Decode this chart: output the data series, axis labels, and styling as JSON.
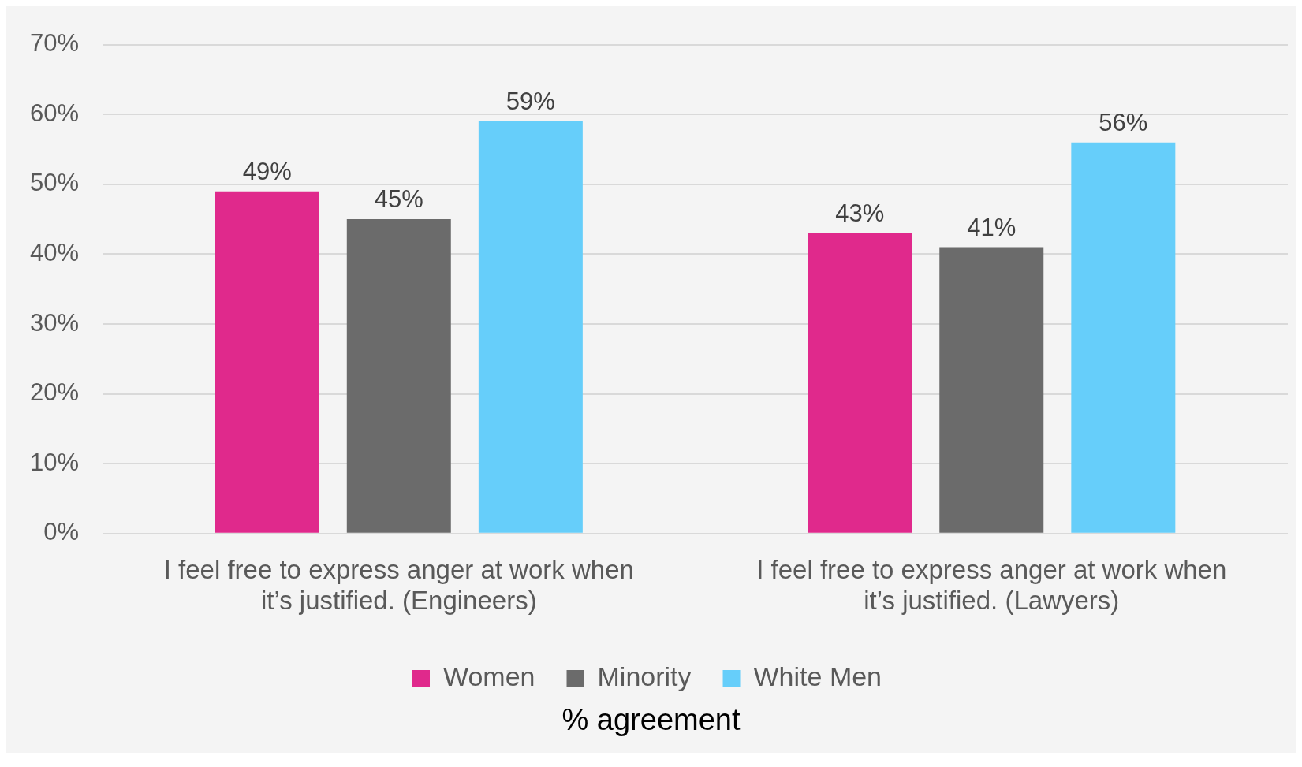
{
  "chart_data": {
    "type": "bar",
    "xlabel": "% agreement",
    "categories": [
      "I feel free to express anger at work when it’s justified. (Engineers)",
      "I feel free to express anger at work when it’s justified. (Lawyers)"
    ],
    "series": [
      {
        "name": "Women",
        "color": "#e0298c",
        "values": [
          49,
          43
        ],
        "value_labels": [
          "49%",
          "43%"
        ]
      },
      {
        "name": "Minority",
        "color": "#6b6b6b",
        "values": [
          45,
          41
        ],
        "value_labels": [
          "45%",
          "41%"
        ]
      },
      {
        "name": "White Men",
        "color": "#66cefa",
        "values": [
          59,
          56
        ],
        "value_labels": [
          "59%",
          "56%"
        ]
      }
    ],
    "ylim": [
      0,
      70
    ],
    "yticks": [
      {
        "value": 0,
        "label": "0%"
      },
      {
        "value": 10,
        "label": "10%"
      },
      {
        "value": 20,
        "label": "20%"
      },
      {
        "value": 30,
        "label": "30%"
      },
      {
        "value": 40,
        "label": "40%"
      },
      {
        "value": 50,
        "label": "50%"
      },
      {
        "value": 60,
        "label": "60%"
      },
      {
        "value": 70,
        "label": "70%"
      }
    ],
    "grid": "y",
    "legend": "bottom"
  }
}
